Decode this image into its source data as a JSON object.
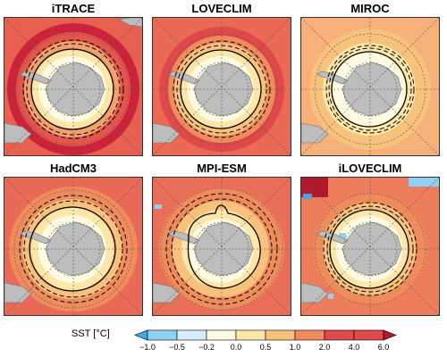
{
  "panels": [
    {
      "title": "iTRACE"
    },
    {
      "title": "LOVECLIM"
    },
    {
      "title": "MIROC"
    },
    {
      "title": "HadCM3"
    },
    {
      "title": "MPI-ESM"
    },
    {
      "title": "iLOVECLIM"
    }
  ],
  "colorbar": {
    "label": "SST [°C]",
    "ticks": [
      "−1.0",
      "−0.5",
      "−0.2",
      "0.0",
      "0.5",
      "1.0",
      "2.0",
      "4.0",
      "6.0"
    ],
    "colors": [
      "#3fa9e6",
      "#8fd1f2",
      "#d4eefb",
      "#fffbe2",
      "#fde7a8",
      "#f8c27c",
      "#f08c5c",
      "#e0494a",
      "#b3172c"
    ]
  },
  "colors": {
    "land": "#bdbdbd",
    "land_outline": "#6f6f6f",
    "contour": "#000000"
  }
}
